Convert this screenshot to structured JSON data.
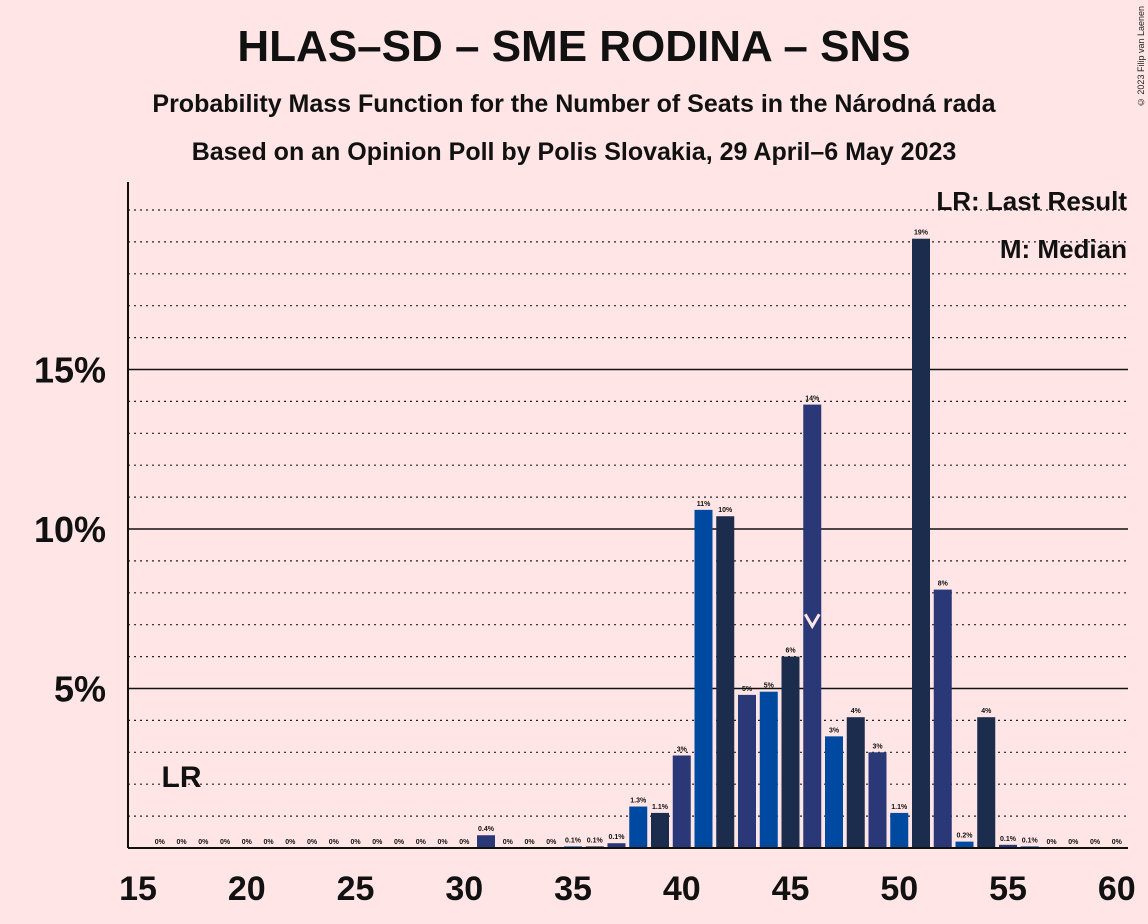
{
  "title": "HLAS–SD – SME RODINA – SNS",
  "subtitle1": "Probability Mass Function for the Number of Seats in the Národná rada",
  "subtitle2": "Based on an Opinion Poll by Polis Slovakia, 29 April–6 May 2023",
  "copyright": "© 2023 Filip van Laenen",
  "chart_data": {
    "type": "bar",
    "xlabel": "",
    "ylabel": "",
    "x": [
      15,
      16,
      17,
      18,
      19,
      20,
      21,
      22,
      23,
      24,
      25,
      26,
      27,
      28,
      29,
      30,
      31,
      32,
      33,
      34,
      35,
      36,
      37,
      38,
      39,
      40,
      41,
      42,
      43,
      44,
      45,
      46,
      47,
      48,
      49,
      50,
      51,
      52,
      53,
      54,
      55,
      56,
      57,
      58,
      59,
      60
    ],
    "values": [
      0,
      0,
      0,
      0,
      0,
      0,
      0,
      0,
      0,
      0,
      0,
      0,
      0,
      0,
      0,
      0,
      0.4,
      0,
      0,
      0,
      0.05,
      0.05,
      0.15,
      1.3,
      1.1,
      2.9,
      10.6,
      10.4,
      4.8,
      4.9,
      6.0,
      13.9,
      3.5,
      4.1,
      3.0,
      1.1,
      19.1,
      8.1,
      0.2,
      4.1,
      0.1,
      0.05,
      0,
      0,
      0,
      0
    ],
    "labels": [
      "",
      "0%",
      "0%",
      "0%",
      "0%",
      "0%",
      "0%",
      "0%",
      "0%",
      "0%",
      "0%",
      "0%",
      "0%",
      "0%",
      "0%",
      "0%",
      "0.4%",
      "0%",
      "0%",
      "0%",
      "0.1%",
      "0.1%",
      "0.1%",
      "1.3%",
      "1.1%",
      "3%",
      "11%",
      "10%",
      "5%",
      "5%",
      "6%",
      "14%",
      "3%",
      "4%",
      "3%",
      "1.1%",
      "19%",
      "8%",
      "0.2%",
      "4%",
      "0.1%",
      "0.1%",
      "0%",
      "0%",
      "0%",
      "0%"
    ],
    "colors": [
      "#1C2C4C",
      "#2A3877",
      "#0049A0"
    ],
    "xlim": [
      15,
      60
    ],
    "ylim": [
      0,
      20
    ],
    "xticks": [
      15,
      20,
      25,
      30,
      35,
      40,
      45,
      50,
      55,
      60
    ],
    "xtick_labels": [
      "15",
      "20",
      "25",
      "30",
      "35",
      "40",
      "45",
      "50",
      "55",
      "60"
    ],
    "yticks_major": [
      5,
      10,
      15
    ],
    "ytick_labels": [
      "5%",
      "10%",
      "15%"
    ],
    "grid_minor_step": 1,
    "last_result_seat": 17,
    "median_seat": 46,
    "lr_label": "LR",
    "legend": [
      "LR: Last Result",
      "M: Median"
    ],
    "legend_position": "top-right"
  }
}
